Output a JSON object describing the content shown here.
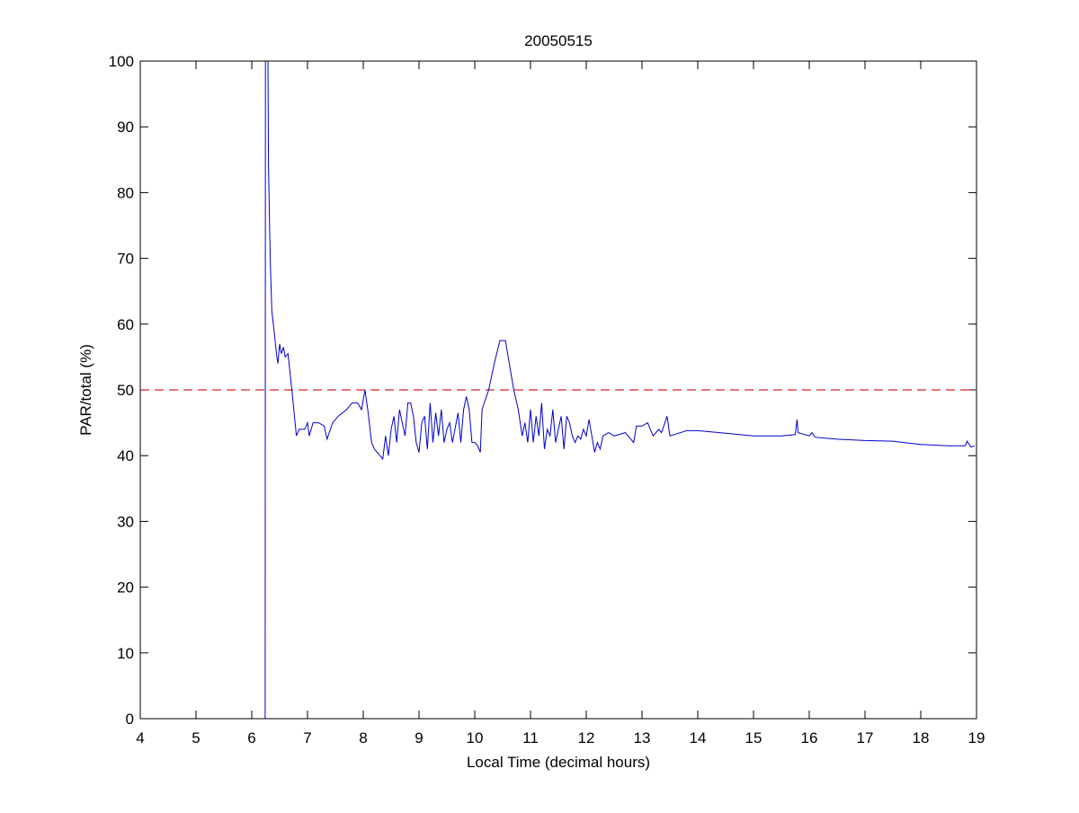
{
  "chart_data": {
    "type": "line",
    "title": "20050515",
    "xlabel": "Local Time (decimal hours)",
    "ylabel": "PAR/total (%)",
    "xlim": [
      4,
      19
    ],
    "ylim": [
      0,
      100
    ],
    "xticks": [
      4,
      5,
      6,
      7,
      8,
      9,
      10,
      11,
      12,
      13,
      14,
      15,
      16,
      17,
      18,
      19
    ],
    "yticks": [
      0,
      10,
      20,
      30,
      40,
      50,
      60,
      70,
      80,
      90,
      100
    ],
    "grid": false,
    "colors": {
      "series": "#0000cc",
      "reference": "#dd2222"
    },
    "reference_line": {
      "y": 50,
      "style": "dashed"
    },
    "series": [
      {
        "name": "PAR/total",
        "points": [
          [
            6.24,
            0
          ],
          [
            6.245,
            100
          ],
          [
            6.29,
            100
          ],
          [
            6.3,
            84
          ],
          [
            6.33,
            70
          ],
          [
            6.36,
            62
          ],
          [
            6.4,
            59
          ],
          [
            6.45,
            55
          ],
          [
            6.47,
            54
          ],
          [
            6.5,
            57
          ],
          [
            6.53,
            55.5
          ],
          [
            6.57,
            56.5
          ],
          [
            6.6,
            55
          ],
          [
            6.65,
            55.5
          ],
          [
            6.72,
            50
          ],
          [
            6.8,
            43
          ],
          [
            6.85,
            44
          ],
          [
            6.95,
            44
          ],
          [
            7.0,
            45
          ],
          [
            7.03,
            43
          ],
          [
            7.1,
            45
          ],
          [
            7.2,
            45
          ],
          [
            7.3,
            44.5
          ],
          [
            7.35,
            42.5
          ],
          [
            7.45,
            45
          ],
          [
            7.55,
            46
          ],
          [
            7.7,
            47
          ],
          [
            7.8,
            48
          ],
          [
            7.9,
            48
          ],
          [
            7.97,
            47
          ],
          [
            8.03,
            50
          ],
          [
            8.08,
            47
          ],
          [
            8.15,
            42
          ],
          [
            8.2,
            41
          ],
          [
            8.25,
            40.5
          ],
          [
            8.3,
            40
          ],
          [
            8.35,
            39.5
          ],
          [
            8.4,
            43
          ],
          [
            8.45,
            40
          ],
          [
            8.5,
            44
          ],
          [
            8.55,
            46
          ],
          [
            8.6,
            42
          ],
          [
            8.65,
            47
          ],
          [
            8.7,
            45
          ],
          [
            8.75,
            43
          ],
          [
            8.8,
            48
          ],
          [
            8.85,
            48
          ],
          [
            8.9,
            46
          ],
          [
            8.95,
            42
          ],
          [
            9.0,
            40.5
          ],
          [
            9.05,
            45
          ],
          [
            9.1,
            46
          ],
          [
            9.15,
            41
          ],
          [
            9.2,
            48
          ],
          [
            9.25,
            42
          ],
          [
            9.3,
            46.5
          ],
          [
            9.35,
            43
          ],
          [
            9.4,
            47
          ],
          [
            9.45,
            42
          ],
          [
            9.5,
            44
          ],
          [
            9.55,
            45
          ],
          [
            9.6,
            42
          ],
          [
            9.7,
            46.5
          ],
          [
            9.75,
            42
          ],
          [
            9.8,
            47
          ],
          [
            9.85,
            49
          ],
          [
            9.9,
            47
          ],
          [
            9.95,
            42
          ],
          [
            10.0,
            42
          ],
          [
            10.05,
            41.5
          ],
          [
            10.1,
            40.5
          ],
          [
            10.13,
            47
          ],
          [
            10.17,
            48
          ],
          [
            10.25,
            50
          ],
          [
            10.35,
            54
          ],
          [
            10.45,
            57.5
          ],
          [
            10.55,
            57.5
          ],
          [
            10.62,
            54
          ],
          [
            10.7,
            50
          ],
          [
            10.78,
            47
          ],
          [
            10.85,
            43
          ],
          [
            10.9,
            45
          ],
          [
            10.95,
            42
          ],
          [
            11.0,
            47
          ],
          [
            11.05,
            42
          ],
          [
            11.1,
            46
          ],
          [
            11.15,
            43
          ],
          [
            11.2,
            48
          ],
          [
            11.25,
            41
          ],
          [
            11.3,
            44
          ],
          [
            11.35,
            43
          ],
          [
            11.4,
            47
          ],
          [
            11.45,
            42
          ],
          [
            11.5,
            44
          ],
          [
            11.55,
            46
          ],
          [
            11.6,
            41
          ],
          [
            11.65,
            46
          ],
          [
            11.7,
            45
          ],
          [
            11.75,
            43
          ],
          [
            11.8,
            42
          ],
          [
            11.85,
            43
          ],
          [
            11.9,
            42.5
          ],
          [
            11.95,
            44
          ],
          [
            12.0,
            43
          ],
          [
            12.05,
            45.5
          ],
          [
            12.1,
            43
          ],
          [
            12.15,
            40.5
          ],
          [
            12.2,
            42
          ],
          [
            12.25,
            41
          ],
          [
            12.3,
            43
          ],
          [
            12.4,
            43.5
          ],
          [
            12.5,
            43
          ],
          [
            12.7,
            43.5
          ],
          [
            12.85,
            42
          ],
          [
            12.9,
            44.5
          ],
          [
            13.0,
            44.5
          ],
          [
            13.1,
            45
          ],
          [
            13.2,
            43
          ],
          [
            13.3,
            44
          ],
          [
            13.35,
            43.5
          ],
          [
            13.45,
            46
          ],
          [
            13.5,
            43
          ],
          [
            13.8,
            43.8
          ],
          [
            14.0,
            43.8
          ],
          [
            14.5,
            43.4
          ],
          [
            15.0,
            43
          ],
          [
            15.5,
            43
          ],
          [
            15.75,
            43.2
          ],
          [
            15.78,
            45.5
          ],
          [
            15.8,
            43.5
          ],
          [
            16.0,
            43
          ],
          [
            16.05,
            43.5
          ],
          [
            16.1,
            42.8
          ],
          [
            16.5,
            42.5
          ],
          [
            17.0,
            42.3
          ],
          [
            17.5,
            42.2
          ],
          [
            18.0,
            41.7
          ],
          [
            18.5,
            41.5
          ],
          [
            18.8,
            41.5
          ],
          [
            18.83,
            42.2
          ],
          [
            18.9,
            41.3
          ],
          [
            18.97,
            41.5
          ]
        ]
      }
    ]
  }
}
